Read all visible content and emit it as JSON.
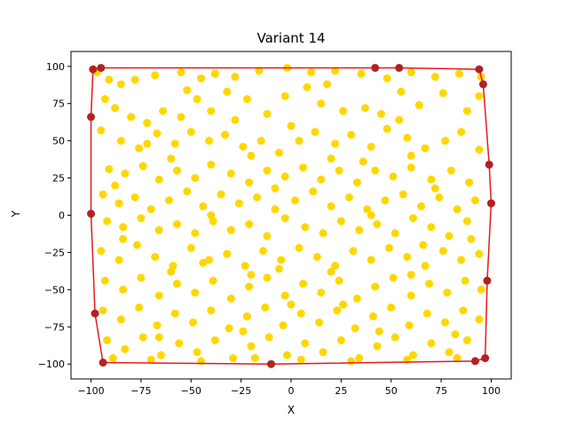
{
  "chart_data": {
    "type": "scatter",
    "title": "Variant 14",
    "xlabel": "X",
    "ylabel": "Y",
    "xlim": [
      -110,
      110
    ],
    "ylim": [
      -110,
      110
    ],
    "xticks": [
      -100,
      -75,
      -50,
      -25,
      0,
      25,
      50,
      75,
      100
    ],
    "yticks": [
      -100,
      -75,
      -50,
      -25,
      0,
      25,
      50,
      75,
      100
    ],
    "grid": false,
    "colors": {
      "points": "#FFD700",
      "hull": "#E31A1C",
      "hull_points": "#B22222"
    },
    "series": [
      {
        "type": "scatter",
        "points": [
          [
            -97,
            96
          ],
          [
            -91,
            91
          ],
          [
            -85,
            88
          ],
          [
            -78,
            91
          ],
          [
            -68,
            94
          ],
          [
            -55,
            96
          ],
          [
            -45,
            92
          ],
          [
            -38,
            95
          ],
          [
            -28,
            93
          ],
          [
            -16,
            97
          ],
          [
            -2,
            99
          ],
          [
            10,
            96
          ],
          [
            22,
            97
          ],
          [
            35,
            95
          ],
          [
            48,
            92
          ],
          [
            60,
            96
          ],
          [
            72,
            93
          ],
          [
            84,
            95
          ],
          [
            95,
            93
          ],
          [
            -93,
            78
          ],
          [
            -88,
            72
          ],
          [
            -80,
            66
          ],
          [
            -72,
            62
          ],
          [
            -64,
            70
          ],
          [
            -55,
            66
          ],
          [
            -47,
            78
          ],
          [
            -40,
            70
          ],
          [
            -32,
            83
          ],
          [
            -22,
            78
          ],
          [
            -12,
            68
          ],
          [
            -3,
            80
          ],
          [
            8,
            86
          ],
          [
            15,
            75
          ],
          [
            26,
            70
          ],
          [
            37,
            72
          ],
          [
            45,
            68
          ],
          [
            55,
            83
          ],
          [
            64,
            74
          ],
          [
            76,
            82
          ],
          [
            88,
            70
          ],
          [
            94,
            80
          ],
          [
            -95,
            57
          ],
          [
            -85,
            50
          ],
          [
            -76,
            45
          ],
          [
            -67,
            55
          ],
          [
            -58,
            48
          ],
          [
            -50,
            56
          ],
          [
            -41,
            50
          ],
          [
            -33,
            54
          ],
          [
            -24,
            46
          ],
          [
            -15,
            50
          ],
          [
            -6,
            42
          ],
          [
            4,
            50
          ],
          [
            12,
            56
          ],
          [
            22,
            48
          ],
          [
            30,
            54
          ],
          [
            40,
            46
          ],
          [
            48,
            58
          ],
          [
            58,
            52
          ],
          [
            67,
            45
          ],
          [
            77,
            50
          ],
          [
            85,
            56
          ],
          [
            94,
            44
          ],
          [
            -91,
            31
          ],
          [
            -83,
            28
          ],
          [
            -74,
            33
          ],
          [
            -66,
            24
          ],
          [
            -57,
            30
          ],
          [
            -48,
            25
          ],
          [
            -40,
            34
          ],
          [
            -30,
            28
          ],
          [
            -21,
            22
          ],
          [
            -12,
            30
          ],
          [
            -3,
            26
          ],
          [
            6,
            32
          ],
          [
            15,
            24
          ],
          [
            24,
            30
          ],
          [
            33,
            22
          ],
          [
            42,
            30
          ],
          [
            51,
            26
          ],
          [
            60,
            32
          ],
          [
            70,
            24
          ],
          [
            80,
            30
          ],
          [
            89,
            22
          ],
          [
            -94,
            14
          ],
          [
            -86,
            8
          ],
          [
            -78,
            12
          ],
          [
            -70,
            4
          ],
          [
            -61,
            10
          ],
          [
            -52,
            16
          ],
          [
            -44,
            6
          ],
          [
            -35,
            14
          ],
          [
            -26,
            8
          ],
          [
            -17,
            12
          ],
          [
            -8,
            4
          ],
          [
            2,
            10
          ],
          [
            11,
            16
          ],
          [
            20,
            6
          ],
          [
            29,
            12
          ],
          [
            38,
            4
          ],
          [
            47,
            10
          ],
          [
            56,
            14
          ],
          [
            65,
            6
          ],
          [
            74,
            12
          ],
          [
            83,
            4
          ],
          [
            92,
            10
          ],
          [
            -92,
            -4
          ],
          [
            -84,
            -8
          ],
          [
            -75,
            -2
          ],
          [
            -66,
            -10
          ],
          [
            -57,
            -6
          ],
          [
            -48,
            -12
          ],
          [
            -39,
            -4
          ],
          [
            -30,
            -10
          ],
          [
            -21,
            -6
          ],
          [
            -12,
            -14
          ],
          [
            -3,
            -2
          ],
          [
            7,
            -8
          ],
          [
            16,
            -12
          ],
          [
            25,
            -4
          ],
          [
            34,
            -10
          ],
          [
            43,
            -6
          ],
          [
            52,
            -12
          ],
          [
            61,
            -2
          ],
          [
            70,
            -8
          ],
          [
            79,
            -14
          ],
          [
            88,
            -4
          ],
          [
            -95,
            -24
          ],
          [
            -86,
            -30
          ],
          [
            -77,
            -20
          ],
          [
            -68,
            -28
          ],
          [
            -59,
            -34
          ],
          [
            -50,
            -22
          ],
          [
            -41,
            -30
          ],
          [
            -32,
            -26
          ],
          [
            -23,
            -34
          ],
          [
            -14,
            -24
          ],
          [
            -5,
            -30
          ],
          [
            4,
            -22
          ],
          [
            13,
            -28
          ],
          [
            22,
            -34
          ],
          [
            31,
            -24
          ],
          [
            40,
            -30
          ],
          [
            49,
            -22
          ],
          [
            58,
            -28
          ],
          [
            67,
            -34
          ],
          [
            76,
            -24
          ],
          [
            85,
            -30
          ],
          [
            94,
            -26
          ],
          [
            -93,
            -44
          ],
          [
            -84,
            -50
          ],
          [
            -75,
            -42
          ],
          [
            -66,
            -54
          ],
          [
            -57,
            -46
          ],
          [
            -48,
            -52
          ],
          [
            -39,
            -44
          ],
          [
            -30,
            -56
          ],
          [
            -21,
            -48
          ],
          [
            -12,
            -42
          ],
          [
            -3,
            -54
          ],
          [
            6,
            -46
          ],
          [
            15,
            -52
          ],
          [
            24,
            -44
          ],
          [
            33,
            -56
          ],
          [
            42,
            -48
          ],
          [
            51,
            -42
          ],
          [
            60,
            -54
          ],
          [
            69,
            -46
          ],
          [
            78,
            -52
          ],
          [
            87,
            -44
          ],
          [
            95,
            -50
          ],
          [
            -94,
            -64
          ],
          [
            -85,
            -70
          ],
          [
            -76,
            -62
          ],
          [
            -67,
            -74
          ],
          [
            -58,
            -66
          ],
          [
            -49,
            -72
          ],
          [
            -40,
            -64
          ],
          [
            -31,
            -76
          ],
          [
            -22,
            -68
          ],
          [
            -13,
            -62
          ],
          [
            -4,
            -74
          ],
          [
            5,
            -66
          ],
          [
            14,
            -72
          ],
          [
            23,
            -64
          ],
          [
            32,
            -76
          ],
          [
            41,
            -68
          ],
          [
            50,
            -62
          ],
          [
            59,
            -74
          ],
          [
            68,
            -66
          ],
          [
            77,
            -72
          ],
          [
            86,
            -64
          ],
          [
            94,
            -70
          ],
          [
            -92,
            -84
          ],
          [
            -83,
            -90
          ],
          [
            -74,
            -82
          ],
          [
            -65,
            -94
          ],
          [
            -56,
            -86
          ],
          [
            -47,
            -92
          ],
          [
            -38,
            -84
          ],
          [
            -29,
            -96
          ],
          [
            -20,
            -88
          ],
          [
            -11,
            -82
          ],
          [
            -2,
            -94
          ],
          [
            7,
            -86
          ],
          [
            16,
            -92
          ],
          [
            25,
            -84
          ],
          [
            34,
            -96
          ],
          [
            43,
            -88
          ],
          [
            52,
            -82
          ],
          [
            61,
            -94
          ],
          [
            70,
            -86
          ],
          [
            79,
            -92
          ],
          [
            88,
            -84
          ],
          [
            -89,
            -96
          ],
          [
            -70,
            -97
          ],
          [
            -45,
            -98
          ],
          [
            -18,
            -96
          ],
          [
            5,
            -97
          ],
          [
            30,
            -98
          ],
          [
            58,
            -97
          ],
          [
            83,
            -96
          ],
          [
            -60,
            38
          ],
          [
            -20,
            40
          ],
          [
            20,
            38
          ],
          [
            60,
            40
          ],
          [
            -60,
            -38
          ],
          [
            -20,
            -40
          ],
          [
            20,
            -38
          ],
          [
            60,
            -40
          ],
          [
            0,
            60
          ],
          [
            0,
            -60
          ],
          [
            -40,
            0
          ],
          [
            40,
            0
          ],
          [
            -88,
            20
          ],
          [
            -72,
            48
          ],
          [
            -52,
            84
          ],
          [
            -28,
            64
          ],
          [
            -8,
            18
          ],
          [
            18,
            88
          ],
          [
            36,
            36
          ],
          [
            54,
            64
          ],
          [
            72,
            18
          ],
          [
            90,
            -16
          ],
          [
            -84,
            -16
          ],
          [
            -66,
            -82
          ],
          [
            -44,
            -32
          ],
          [
            -24,
            -78
          ],
          [
            -6,
            -36
          ],
          [
            26,
            -60
          ],
          [
            44,
            -78
          ],
          [
            66,
            -20
          ],
          [
            82,
            -80
          ]
        ]
      },
      {
        "type": "hull",
        "closed": true,
        "points": [
          [
            -99,
            98
          ],
          [
            -95,
            99
          ],
          [
            42,
            99
          ],
          [
            54,
            99
          ],
          [
            94,
            98
          ],
          [
            96,
            88
          ],
          [
            99,
            34
          ],
          [
            100,
            8
          ],
          [
            98,
            -44
          ],
          [
            97,
            -96
          ],
          [
            92,
            -98
          ],
          [
            -10,
            -100
          ],
          [
            -94,
            -99
          ],
          [
            -98,
            -66
          ],
          [
            -100,
            1
          ],
          [
            -100,
            66
          ]
        ]
      }
    ]
  }
}
